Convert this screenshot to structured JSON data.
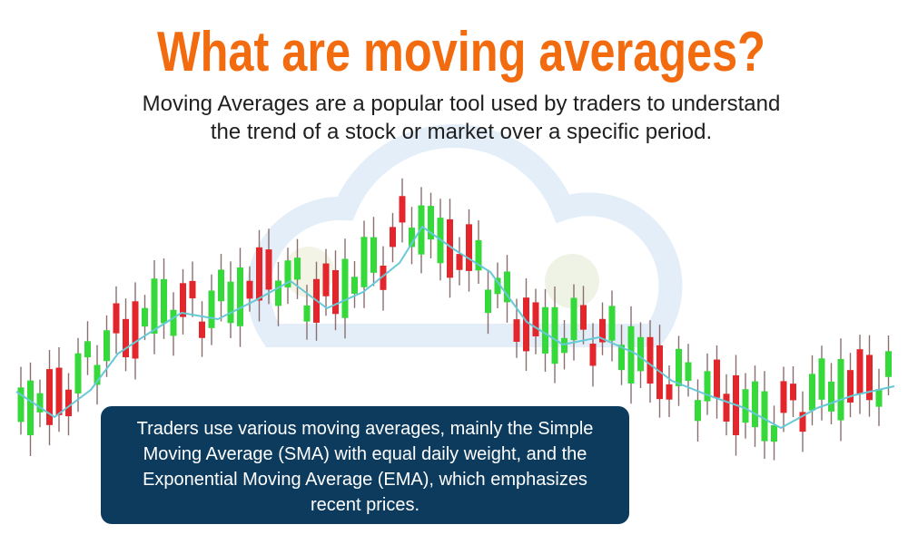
{
  "header": {
    "title": "What are moving averages?",
    "subtitle": [
      "Moving Averages are a popular tool used by traders to understand",
      "the trend of a stock or market over a specific period."
    ]
  },
  "callout": {
    "lines": [
      "Traders use various moving averages, mainly the Simple",
      "Moving Average (SMA) with equal daily weight, and the",
      "Exponential Moving Average (EMA), which emphasizes",
      "recent prices."
    ]
  }
}
